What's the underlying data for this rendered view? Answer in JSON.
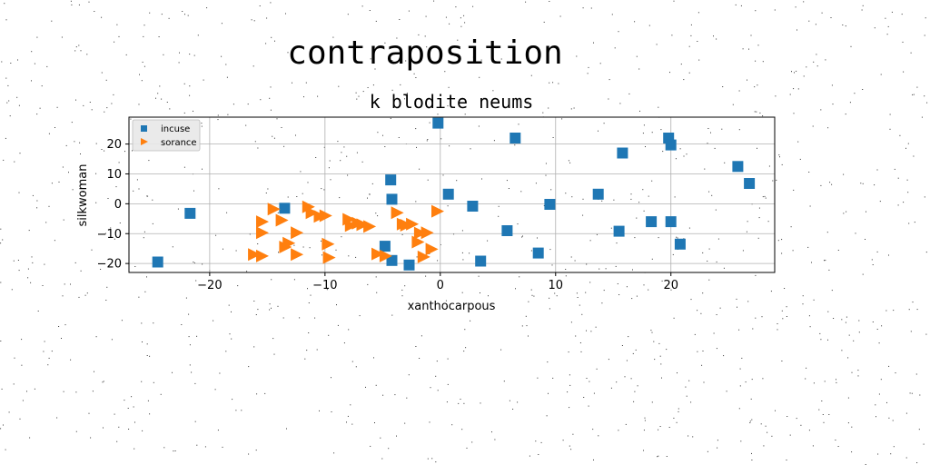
{
  "figure": {
    "suptitle": "contraposition"
  },
  "chart_data": {
    "type": "scatter",
    "title": "k blodite neums",
    "xlabel": "xanthocarpous",
    "ylabel": "silkwoman",
    "xlim": [
      -27,
      29
    ],
    "ylim": [
      -23,
      29
    ],
    "xticks": [
      -20,
      -10,
      0,
      10,
      20
    ],
    "yticks": [
      -20,
      -10,
      0,
      10,
      20
    ],
    "xtick_labels": [
      "−20",
      "−10",
      "0",
      "10",
      "20"
    ],
    "ytick_labels": [
      "−20",
      "−10",
      "0",
      "10",
      "20"
    ],
    "grid": true,
    "legend_position": "top-left",
    "series": [
      {
        "name": "incuse",
        "marker": "square",
        "color": "#1f77b4",
        "points": [
          [
            -24.5,
            -19.5
          ],
          [
            -21.7,
            -3.2
          ],
          [
            -13.5,
            -1.5
          ],
          [
            -4.3,
            8.0
          ],
          [
            -4.2,
            1.5
          ],
          [
            -4.8,
            -14.2
          ],
          [
            -4.2,
            -19.0
          ],
          [
            -2.7,
            -20.5
          ],
          [
            -0.2,
            27.0
          ],
          [
            0.7,
            3.2
          ],
          [
            2.8,
            -0.8
          ],
          [
            3.5,
            -19.2
          ],
          [
            6.5,
            22.0
          ],
          [
            5.8,
            -9.0
          ],
          [
            8.5,
            -16.5
          ],
          [
            9.5,
            -0.2
          ],
          [
            13.7,
            3.2
          ],
          [
            15.5,
            -9.2
          ],
          [
            15.8,
            17.0
          ],
          [
            18.3,
            -6.0
          ],
          [
            19.8,
            22.0
          ],
          [
            20.0,
            19.7
          ],
          [
            20.0,
            -6.0
          ],
          [
            20.8,
            -13.5
          ],
          [
            25.8,
            12.5
          ],
          [
            26.8,
            6.8
          ]
        ]
      },
      {
        "name": "sorance",
        "marker": "triangle-right",
        "color": "#ff7f0e",
        "points": [
          [
            -16.2,
            -17.0
          ],
          [
            -15.5,
            -17.5
          ],
          [
            -15.5,
            -6.0
          ],
          [
            -15.5,
            -9.7
          ],
          [
            -14.5,
            -1.8
          ],
          [
            -13.8,
            -5.5
          ],
          [
            -13.5,
            -14.5
          ],
          [
            -13.2,
            -13.2
          ],
          [
            -12.5,
            -17.0
          ],
          [
            -12.5,
            -9.7
          ],
          [
            -11.5,
            -1.0
          ],
          [
            -11.2,
            -3.0
          ],
          [
            -10.5,
            -4.2
          ],
          [
            -10.0,
            -4.0
          ],
          [
            -9.8,
            -13.5
          ],
          [
            -9.7,
            -18.0
          ],
          [
            -8.0,
            -5.2
          ],
          [
            -7.8,
            -7.3
          ],
          [
            -7.2,
            -6.5
          ],
          [
            -6.8,
            -7.0
          ],
          [
            -6.2,
            -7.6
          ],
          [
            -5.5,
            -16.8
          ],
          [
            -4.8,
            -17.5
          ],
          [
            -3.8,
            -3.0
          ],
          [
            -3.3,
            -6.8
          ],
          [
            -3.0,
            -7.2
          ],
          [
            -2.5,
            -6.8
          ],
          [
            -2.0,
            -12.8
          ],
          [
            -1.8,
            -9.8
          ],
          [
            -1.5,
            -17.8
          ],
          [
            -1.2,
            -9.7
          ],
          [
            -0.8,
            -15.2
          ],
          [
            -0.3,
            -2.5
          ]
        ]
      }
    ]
  }
}
